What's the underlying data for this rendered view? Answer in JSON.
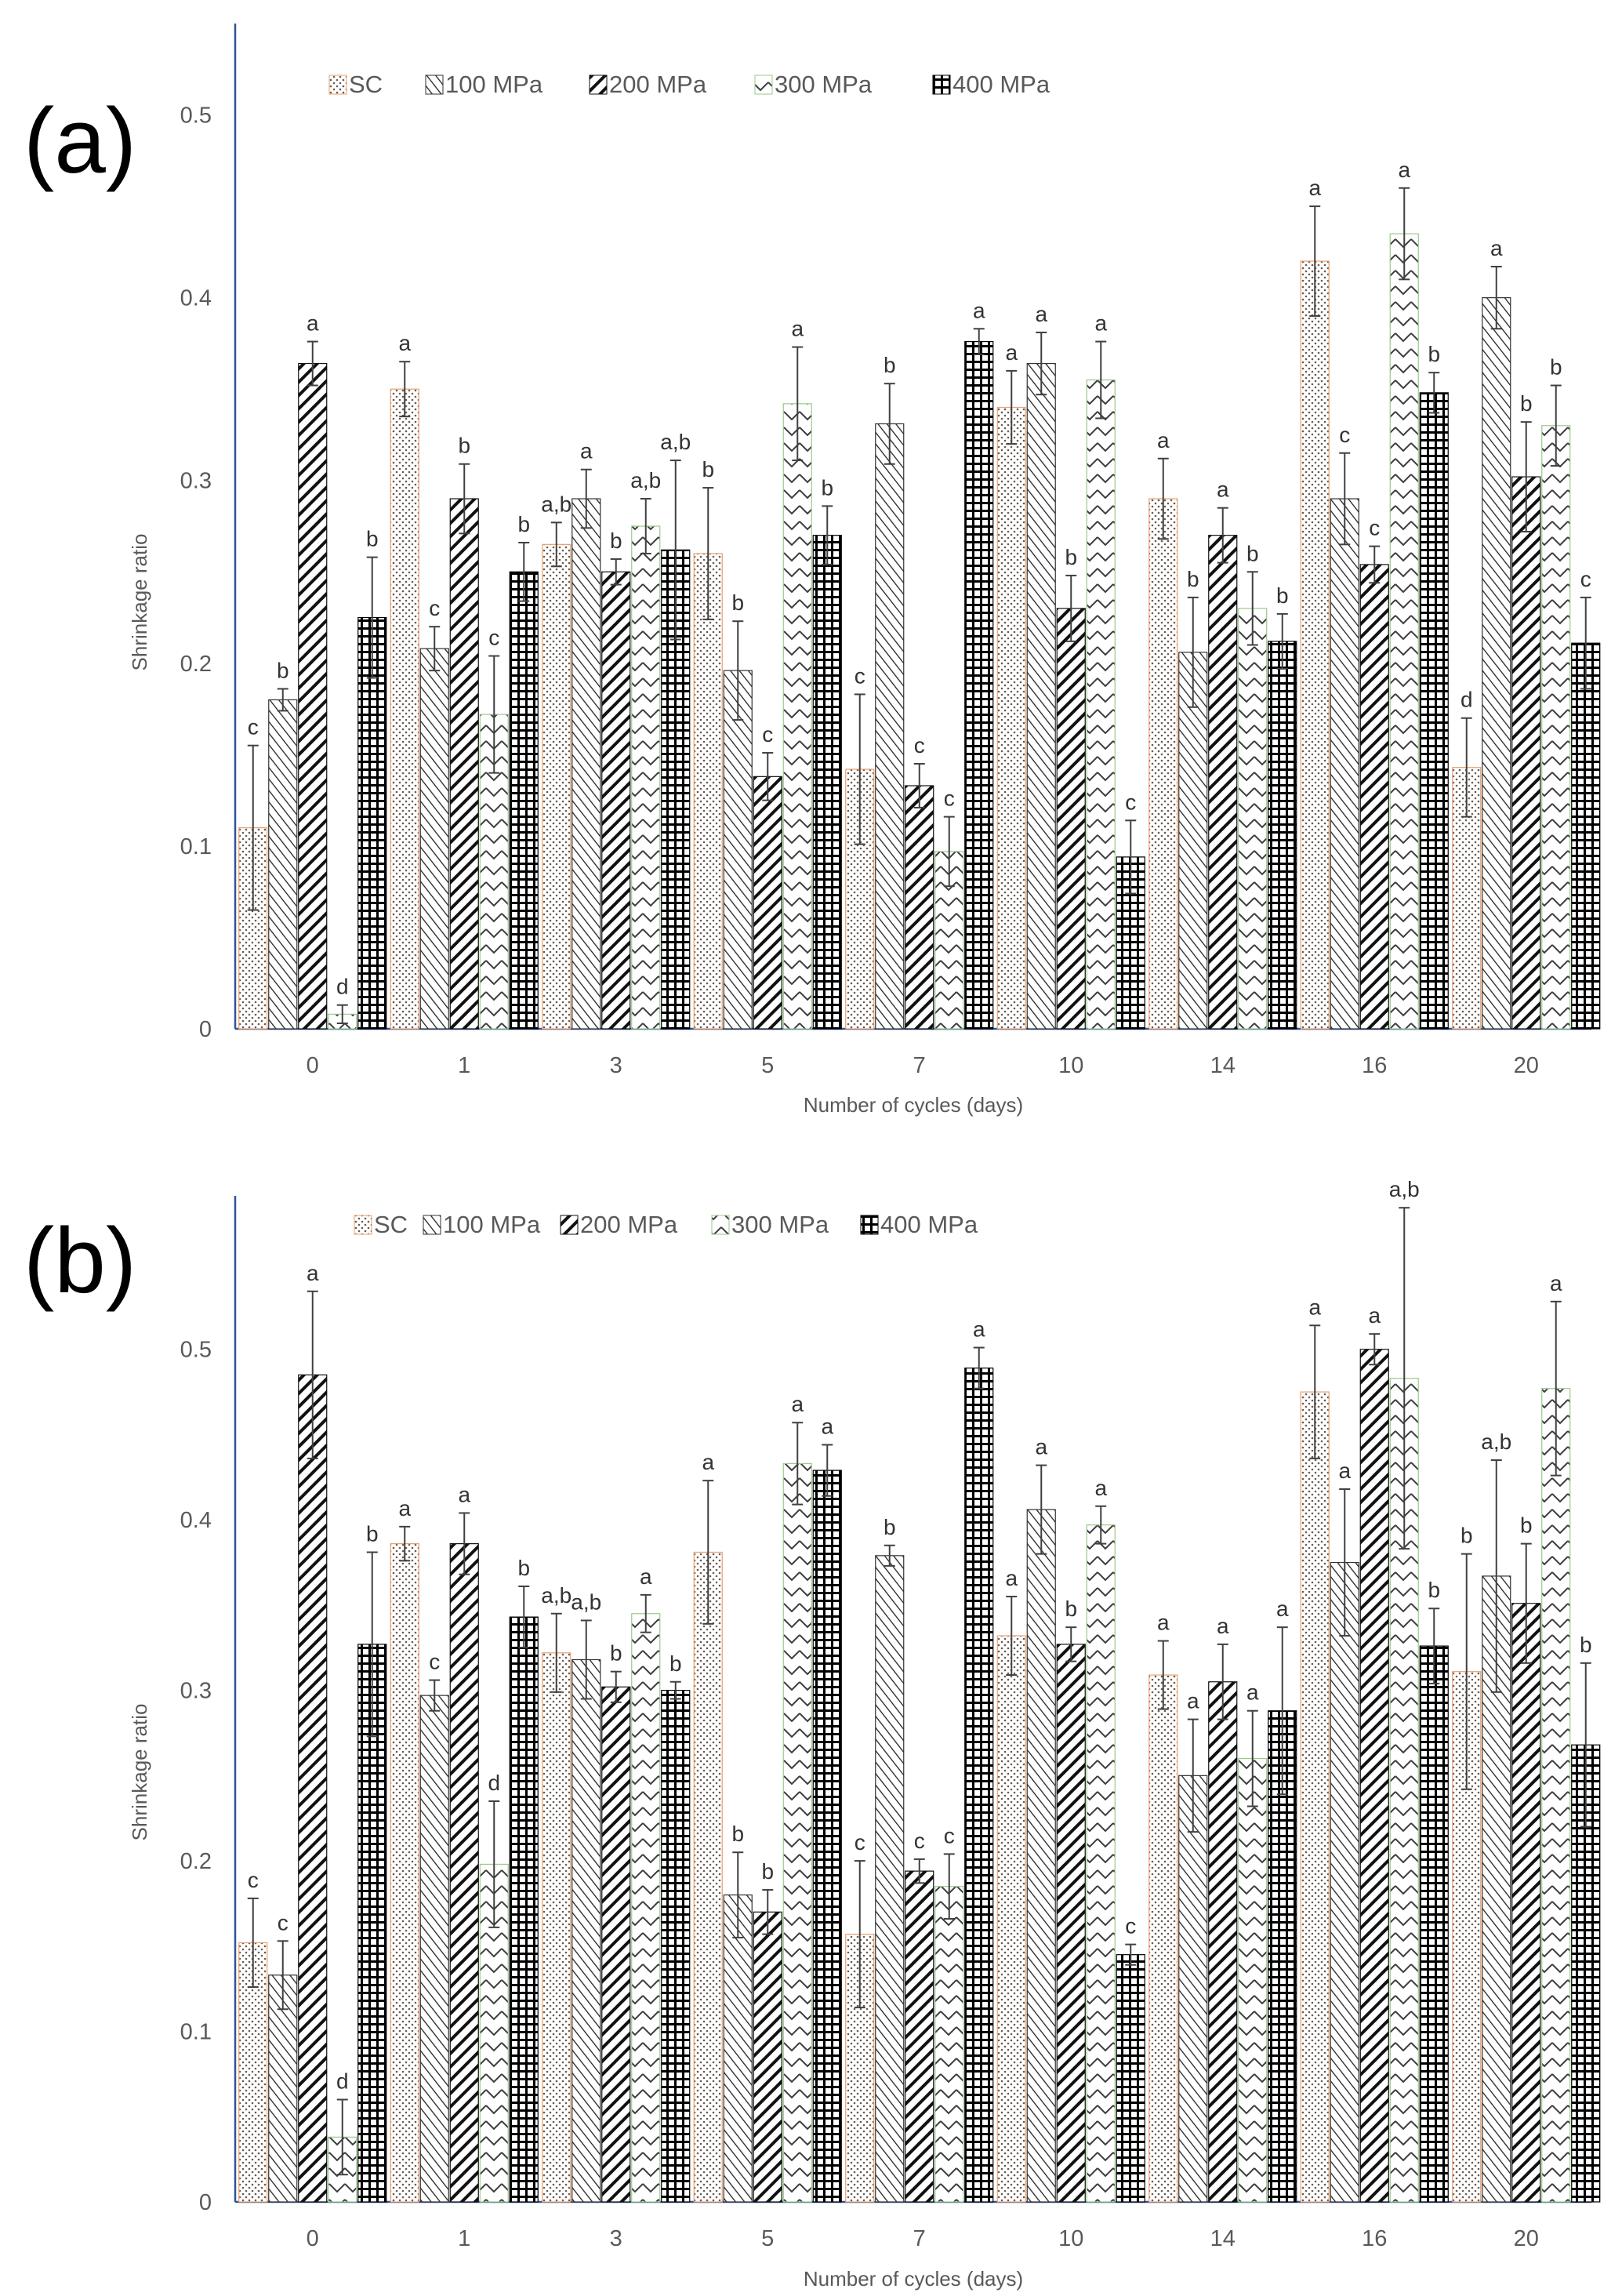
{
  "chart_data": [
    {
      "type": "bar",
      "panel_label": "(a)",
      "xlabel": "Number of cycles (days)",
      "ylabel": "Shrinkage ratio",
      "ylim": [
        0,
        0.55
      ],
      "yticks": [
        0,
        0.1,
        0.2,
        0.3,
        0.4,
        0.5
      ],
      "ytick_labels": [
        "0",
        "0.1",
        "0.2",
        "0.3",
        "0.4",
        "0.5"
      ],
      "categories": [
        "0",
        "1",
        "3",
        "5",
        "7",
        "10",
        "14",
        "16",
        "20"
      ],
      "legend_position": "top",
      "series": [
        {
          "name": "SC",
          "values": [
            0.11,
            0.35,
            0.265,
            0.26,
            0.142,
            0.34,
            0.29,
            0.42,
            0.143
          ],
          "errors": [
            0.045,
            0.015,
            0.012,
            0.036,
            0.041,
            0.02,
            0.022,
            0.03,
            0.027
          ],
          "labels": [
            "c",
            "a",
            "a,b",
            "b",
            "c",
            "a",
            "a",
            "a",
            "d"
          ]
        },
        {
          "name": "100 MPa",
          "values": [
            0.18,
            0.208,
            0.29,
            0.196,
            0.331,
            0.364,
            0.206,
            0.29,
            0.4
          ],
          "errors": [
            0.006,
            0.012,
            0.016,
            0.027,
            0.022,
            0.017,
            0.03,
            0.025,
            0.017
          ],
          "labels": [
            "b",
            "c",
            "a",
            "b",
            "b",
            "a",
            "b",
            "c",
            "a"
          ]
        },
        {
          "name": "200 MPa",
          "values": [
            0.364,
            0.29,
            0.25,
            0.138,
            0.133,
            0.23,
            0.27,
            0.254,
            0.302
          ],
          "errors": [
            0.012,
            0.019,
            0.007,
            0.013,
            0.012,
            0.018,
            0.015,
            0.01,
            0.03
          ],
          "labels": [
            "a",
            "b",
            "b",
            "c",
            "c",
            "b",
            "a",
            "c",
            "b"
          ]
        },
        {
          "name": "300 MPa",
          "values": [
            0.008,
            0.172,
            0.275,
            0.342,
            0.097,
            0.355,
            0.23,
            0.435,
            0.33
          ],
          "errors": [
            0.005,
            0.032,
            0.015,
            0.031,
            0.019,
            0.021,
            0.02,
            0.025,
            0.022
          ],
          "labels": [
            "d",
            "c",
            "a,b",
            "a",
            "c",
            "a",
            "b",
            "a",
            "b"
          ]
        },
        {
          "name": "400 MPa",
          "values": [
            0.225,
            0.25,
            0.262,
            0.27,
            0.376,
            0.094,
            0.212,
            0.348,
            0.211
          ],
          "errors": [
            0.033,
            0.016,
            0.049,
            0.016,
            0.007,
            0.02,
            0.015,
            0.011,
            0.025
          ],
          "labels": [
            "b",
            "b",
            "a,b",
            "b",
            "a",
            "c",
            "b",
            "b",
            "c"
          ]
        }
      ]
    },
    {
      "type": "bar",
      "panel_label": "(b)",
      "xlabel": "Number of cycles (days)",
      "ylabel": "Shrinkage ratio",
      "ylim": [
        0,
        0.59
      ],
      "yticks": [
        0,
        0.1,
        0.2,
        0.3,
        0.4,
        0.5
      ],
      "ytick_labels": [
        "0",
        "0.1",
        "0.2",
        "0.3",
        "0.4",
        "0.5"
      ],
      "categories": [
        "0",
        "1",
        "3",
        "5",
        "7",
        "10",
        "14",
        "16",
        "20"
      ],
      "legend_position": "top",
      "series": [
        {
          "name": "SC",
          "values": [
            0.152,
            0.386,
            0.322,
            0.381,
            0.157,
            0.332,
            0.309,
            0.475,
            0.311
          ],
          "errors": [
            0.026,
            0.01,
            0.023,
            0.042,
            0.043,
            0.023,
            0.02,
            0.039,
            0.069
          ],
          "labels": [
            "c",
            "a",
            "a,b",
            "a",
            "c",
            "a",
            "a",
            "a",
            "b"
          ]
        },
        {
          "name": "100 MPa",
          "values": [
            0.133,
            0.297,
            0.318,
            0.18,
            0.379,
            0.406,
            0.25,
            0.375,
            0.367
          ],
          "errors": [
            0.02,
            0.009,
            0.023,
            0.025,
            0.006,
            0.026,
            0.033,
            0.043,
            0.068
          ],
          "labels": [
            "c",
            "c",
            "a,b",
            "b",
            "b",
            "a",
            "a",
            "a",
            "a,b"
          ]
        },
        {
          "name": "200 MPa",
          "values": [
            0.485,
            0.386,
            0.302,
            0.17,
            0.194,
            0.327,
            0.305,
            0.5,
            0.351
          ],
          "errors": [
            0.049,
            0.018,
            0.009,
            0.013,
            0.007,
            0.01,
            0.022,
            0.009,
            0.035
          ],
          "labels": [
            "a",
            "a",
            "b",
            "b",
            "c",
            "b",
            "a",
            "a",
            "b"
          ]
        },
        {
          "name": "300 MPa",
          "values": [
            0.038,
            0.198,
            0.345,
            0.433,
            0.185,
            0.397,
            0.26,
            0.483,
            0.477
          ],
          "errors": [
            0.022,
            0.037,
            0.011,
            0.024,
            0.019,
            0.011,
            0.028,
            0.1,
            0.051
          ],
          "labels": [
            "d",
            "d",
            "a",
            "a",
            "c",
            "a",
            "a",
            "a,b",
            "a"
          ]
        },
        {
          "name": "400 MPa",
          "values": [
            0.327,
            0.343,
            0.3,
            0.429,
            0.489,
            0.145,
            0.288,
            0.326,
            0.268
          ],
          "errors": [
            0.054,
            0.018,
            0.005,
            0.015,
            0.012,
            0.006,
            0.049,
            0.022,
            0.048
          ],
          "labels": [
            "b",
            "b",
            "b",
            "a",
            "a",
            "c",
            "a",
            "b",
            "b"
          ]
        }
      ]
    }
  ],
  "colors": {
    "axis": "#2e5597",
    "bar_fg": "#222222",
    "sc_fg": "#8a7060",
    "sc_border": "#e8a070",
    "p300_fg": "#3d3d3d",
    "p300_border": "#9ac98a",
    "text": "#595959"
  }
}
